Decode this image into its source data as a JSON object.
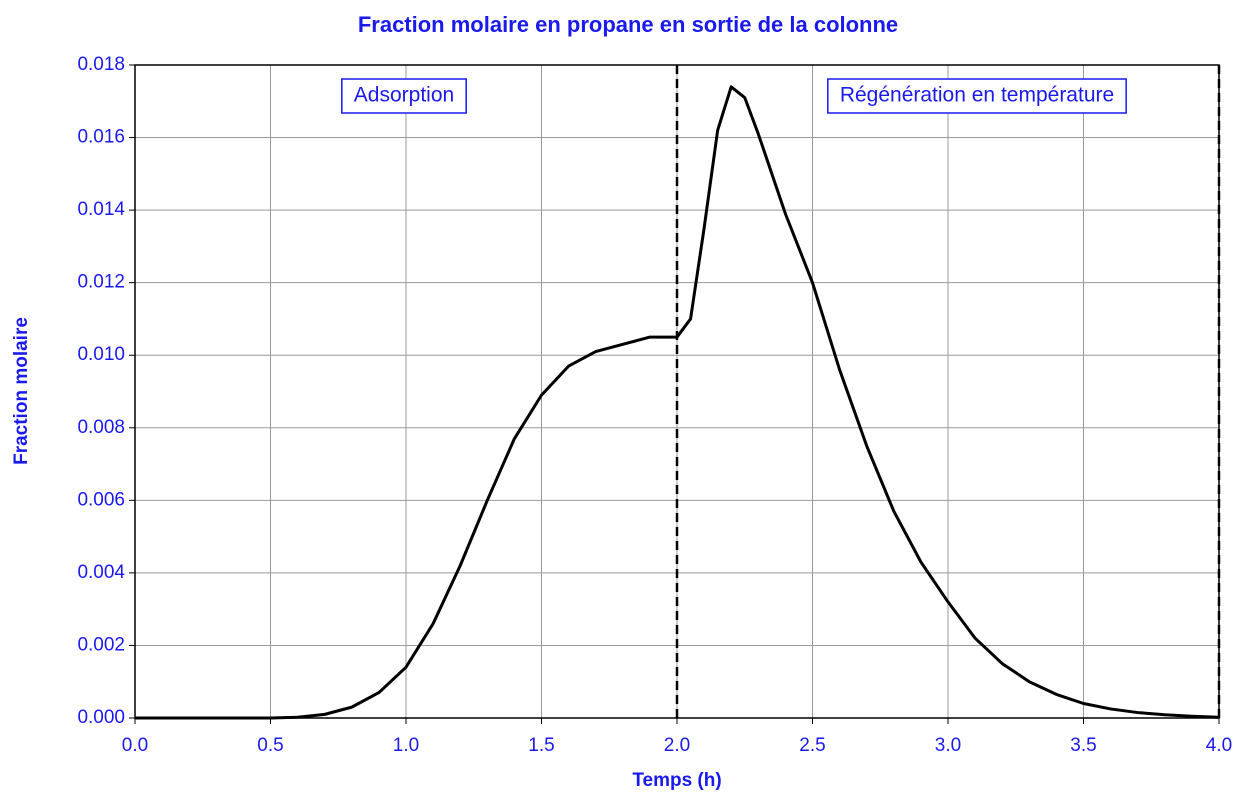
{
  "chart_data": {
    "type": "line",
    "title": "Fraction  molaire  en propane  en sortie de la colonne",
    "x_label": "Temps (h)",
    "y_label": "Fraction molaire",
    "x": [
      0.0,
      0.5,
      0.6,
      0.7,
      0.8,
      0.9,
      1.0,
      1.1,
      1.2,
      1.3,
      1.4,
      1.5,
      1.6,
      1.7,
      1.8,
      1.9,
      2.0,
      2.02,
      2.05,
      2.1,
      2.15,
      2.2,
      2.25,
      2.3,
      2.4,
      2.5,
      2.6,
      2.7,
      2.8,
      2.9,
      3.0,
      3.1,
      3.2,
      3.3,
      3.4,
      3.5,
      3.6,
      3.7,
      3.8,
      3.9,
      4.0
    ],
    "series": [
      {
        "name": "Fraction molaire",
        "color": "#000000",
        "values": [
          0,
          0,
          2e-05,
          0.0001,
          0.0003,
          0.0007,
          0.0014,
          0.0026,
          0.0042,
          0.006,
          0.0077,
          0.0089,
          0.0097,
          0.0101,
          0.0103,
          0.0105,
          0.0105,
          0.0107,
          0.011,
          0.0135,
          0.0162,
          0.0174,
          0.0171,
          0.0161,
          0.0139,
          0.012,
          0.0096,
          0.0075,
          0.0057,
          0.0043,
          0.0032,
          0.0022,
          0.0015,
          0.001,
          0.00065,
          0.0004,
          0.00025,
          0.00015,
          9e-05,
          5e-05,
          2e-05
        ]
      }
    ],
    "xlim": [
      0,
      4
    ],
    "ylim": [
      0,
      0.018
    ],
    "xticks": [
      {
        "value": 0,
        "label": "0.0"
      },
      0.5,
      {
        "value": 1,
        "label": "1.0"
      },
      1.5,
      {
        "value": 2,
        "label": "2.0"
      },
      2.5,
      {
        "value": 3,
        "label": "3.0"
      },
      3.5,
      {
        "value": 4,
        "label": "4.0"
      }
    ],
    "yticks": [
      {
        "value": 0,
        "label": "0.000"
      },
      {
        "value": 0.002,
        "label": "0.002"
      },
      {
        "value": 0.004,
        "label": "0.004"
      },
      {
        "value": 0.006,
        "label": "0.006"
      },
      {
        "value": 0.008,
        "label": "0.008"
      },
      {
        "value": 0.01,
        "label": "0.010"
      },
      {
        "value": 0.012,
        "label": "0.012"
      },
      {
        "value": 0.014,
        "label": "0.014"
      },
      {
        "value": 0.016,
        "label": "0.016"
      },
      {
        "value": 0.018,
        "label": "0.018"
      }
    ],
    "grid": true,
    "vlines": [
      2.0,
      4.0
    ],
    "annotations": [
      "Adsorption",
      "Régénération en température"
    ]
  }
}
